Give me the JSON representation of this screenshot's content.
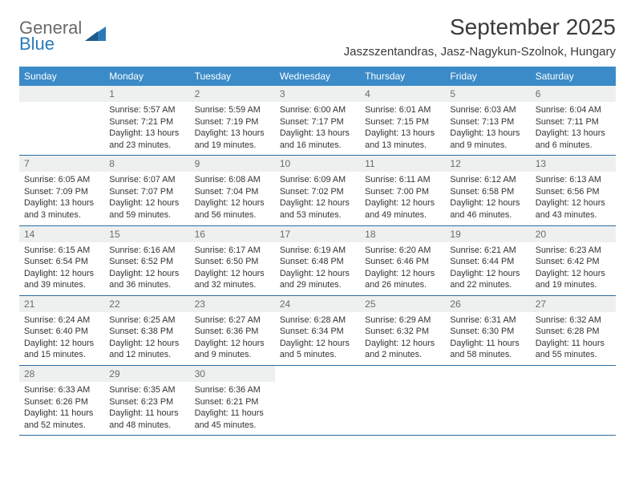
{
  "logo": {
    "text_top": "General",
    "text_bottom": "Blue",
    "top_color": "#6a6a6a",
    "bottom_color": "#2a7ab9",
    "icon_color": "#2a7ab9"
  },
  "title": "September 2025",
  "location": "Jaszszentandras, Jasz-Nagykun-Szolnok, Hungary",
  "colors": {
    "header_bg": "#3b8bc8",
    "header_text": "#ffffff",
    "daynum_bg": "#eef0f0",
    "daynum_text": "#6b6b6b",
    "row_border": "#2a6da3",
    "body_text": "#333333",
    "background": "#ffffff"
  },
  "weekdays": [
    "Sunday",
    "Monday",
    "Tuesday",
    "Wednesday",
    "Thursday",
    "Friday",
    "Saturday"
  ],
  "weeks": [
    [
      null,
      {
        "n": "1",
        "sunrise": "Sunrise: 5:57 AM",
        "sunset": "Sunset: 7:21 PM",
        "d1": "Daylight: 13 hours",
        "d2": "and 23 minutes."
      },
      {
        "n": "2",
        "sunrise": "Sunrise: 5:59 AM",
        "sunset": "Sunset: 7:19 PM",
        "d1": "Daylight: 13 hours",
        "d2": "and 19 minutes."
      },
      {
        "n": "3",
        "sunrise": "Sunrise: 6:00 AM",
        "sunset": "Sunset: 7:17 PM",
        "d1": "Daylight: 13 hours",
        "d2": "and 16 minutes."
      },
      {
        "n": "4",
        "sunrise": "Sunrise: 6:01 AM",
        "sunset": "Sunset: 7:15 PM",
        "d1": "Daylight: 13 hours",
        "d2": "and 13 minutes."
      },
      {
        "n": "5",
        "sunrise": "Sunrise: 6:03 AM",
        "sunset": "Sunset: 7:13 PM",
        "d1": "Daylight: 13 hours",
        "d2": "and 9 minutes."
      },
      {
        "n": "6",
        "sunrise": "Sunrise: 6:04 AM",
        "sunset": "Sunset: 7:11 PM",
        "d1": "Daylight: 13 hours",
        "d2": "and 6 minutes."
      }
    ],
    [
      {
        "n": "7",
        "sunrise": "Sunrise: 6:05 AM",
        "sunset": "Sunset: 7:09 PM",
        "d1": "Daylight: 13 hours",
        "d2": "and 3 minutes."
      },
      {
        "n": "8",
        "sunrise": "Sunrise: 6:07 AM",
        "sunset": "Sunset: 7:07 PM",
        "d1": "Daylight: 12 hours",
        "d2": "and 59 minutes."
      },
      {
        "n": "9",
        "sunrise": "Sunrise: 6:08 AM",
        "sunset": "Sunset: 7:04 PM",
        "d1": "Daylight: 12 hours",
        "d2": "and 56 minutes."
      },
      {
        "n": "10",
        "sunrise": "Sunrise: 6:09 AM",
        "sunset": "Sunset: 7:02 PM",
        "d1": "Daylight: 12 hours",
        "d2": "and 53 minutes."
      },
      {
        "n": "11",
        "sunrise": "Sunrise: 6:11 AM",
        "sunset": "Sunset: 7:00 PM",
        "d1": "Daylight: 12 hours",
        "d2": "and 49 minutes."
      },
      {
        "n": "12",
        "sunrise": "Sunrise: 6:12 AM",
        "sunset": "Sunset: 6:58 PM",
        "d1": "Daylight: 12 hours",
        "d2": "and 46 minutes."
      },
      {
        "n": "13",
        "sunrise": "Sunrise: 6:13 AM",
        "sunset": "Sunset: 6:56 PM",
        "d1": "Daylight: 12 hours",
        "d2": "and 43 minutes."
      }
    ],
    [
      {
        "n": "14",
        "sunrise": "Sunrise: 6:15 AM",
        "sunset": "Sunset: 6:54 PM",
        "d1": "Daylight: 12 hours",
        "d2": "and 39 minutes."
      },
      {
        "n": "15",
        "sunrise": "Sunrise: 6:16 AM",
        "sunset": "Sunset: 6:52 PM",
        "d1": "Daylight: 12 hours",
        "d2": "and 36 minutes."
      },
      {
        "n": "16",
        "sunrise": "Sunrise: 6:17 AM",
        "sunset": "Sunset: 6:50 PM",
        "d1": "Daylight: 12 hours",
        "d2": "and 32 minutes."
      },
      {
        "n": "17",
        "sunrise": "Sunrise: 6:19 AM",
        "sunset": "Sunset: 6:48 PM",
        "d1": "Daylight: 12 hours",
        "d2": "and 29 minutes."
      },
      {
        "n": "18",
        "sunrise": "Sunrise: 6:20 AM",
        "sunset": "Sunset: 6:46 PM",
        "d1": "Daylight: 12 hours",
        "d2": "and 26 minutes."
      },
      {
        "n": "19",
        "sunrise": "Sunrise: 6:21 AM",
        "sunset": "Sunset: 6:44 PM",
        "d1": "Daylight: 12 hours",
        "d2": "and 22 minutes."
      },
      {
        "n": "20",
        "sunrise": "Sunrise: 6:23 AM",
        "sunset": "Sunset: 6:42 PM",
        "d1": "Daylight: 12 hours",
        "d2": "and 19 minutes."
      }
    ],
    [
      {
        "n": "21",
        "sunrise": "Sunrise: 6:24 AM",
        "sunset": "Sunset: 6:40 PM",
        "d1": "Daylight: 12 hours",
        "d2": "and 15 minutes."
      },
      {
        "n": "22",
        "sunrise": "Sunrise: 6:25 AM",
        "sunset": "Sunset: 6:38 PM",
        "d1": "Daylight: 12 hours",
        "d2": "and 12 minutes."
      },
      {
        "n": "23",
        "sunrise": "Sunrise: 6:27 AM",
        "sunset": "Sunset: 6:36 PM",
        "d1": "Daylight: 12 hours",
        "d2": "and 9 minutes."
      },
      {
        "n": "24",
        "sunrise": "Sunrise: 6:28 AM",
        "sunset": "Sunset: 6:34 PM",
        "d1": "Daylight: 12 hours",
        "d2": "and 5 minutes."
      },
      {
        "n": "25",
        "sunrise": "Sunrise: 6:29 AM",
        "sunset": "Sunset: 6:32 PM",
        "d1": "Daylight: 12 hours",
        "d2": "and 2 minutes."
      },
      {
        "n": "26",
        "sunrise": "Sunrise: 6:31 AM",
        "sunset": "Sunset: 6:30 PM",
        "d1": "Daylight: 11 hours",
        "d2": "and 58 minutes."
      },
      {
        "n": "27",
        "sunrise": "Sunrise: 6:32 AM",
        "sunset": "Sunset: 6:28 PM",
        "d1": "Daylight: 11 hours",
        "d2": "and 55 minutes."
      }
    ],
    [
      {
        "n": "28",
        "sunrise": "Sunrise: 6:33 AM",
        "sunset": "Sunset: 6:26 PM",
        "d1": "Daylight: 11 hours",
        "d2": "and 52 minutes."
      },
      {
        "n": "29",
        "sunrise": "Sunrise: 6:35 AM",
        "sunset": "Sunset: 6:23 PM",
        "d1": "Daylight: 11 hours",
        "d2": "and 48 minutes."
      },
      {
        "n": "30",
        "sunrise": "Sunrise: 6:36 AM",
        "sunset": "Sunset: 6:21 PM",
        "d1": "Daylight: 11 hours",
        "d2": "and 45 minutes."
      },
      null,
      null,
      null,
      null
    ]
  ]
}
